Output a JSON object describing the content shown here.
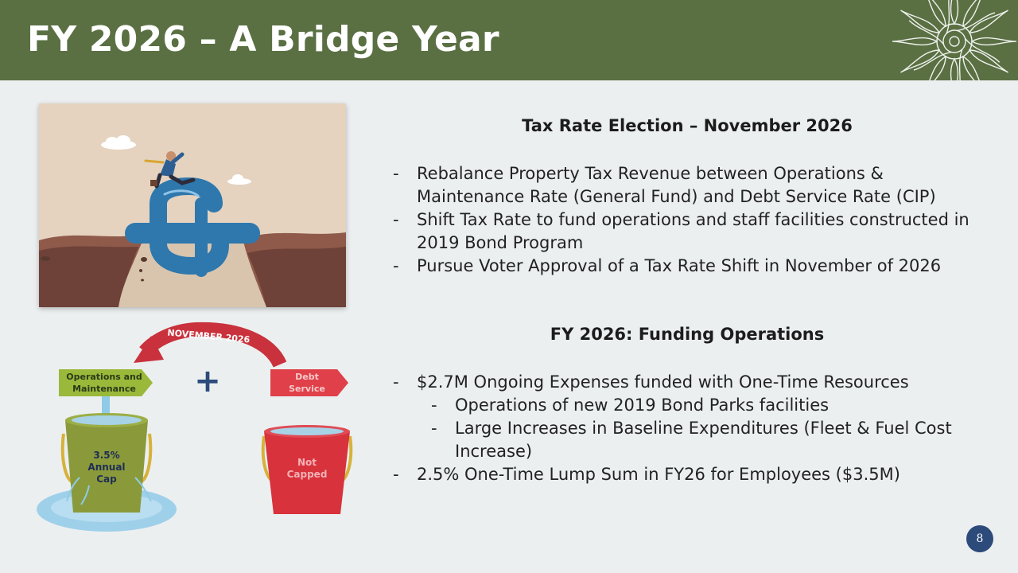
{
  "slide": {
    "title": "FY 2026 – A Bridge Year",
    "page_number": "8"
  },
  "graphic": {
    "arrow_label": "NOVEMBER 2026",
    "om_label_line1": "Operations and",
    "om_label_line2": "Maintenance",
    "debt_label_line1": "Debt",
    "debt_label_line2": "Service",
    "plus_sign": "+",
    "green_bucket_line1": "3.5%",
    "green_bucket_line2": "Annual",
    "green_bucket_line3": "Cap",
    "red_bucket_line1": "Not",
    "red_bucket_line2": "Capped"
  },
  "section1": {
    "heading": "Tax Rate Election – November 2026",
    "bullets": [
      {
        "dash": "-",
        "text": "Rebalance Property Tax Revenue between Operations & Maintenance Rate (General Fund) and Debt Service Rate (CIP)"
      },
      {
        "dash": "-",
        "text": "Shift Tax Rate to fund operations and staff facilities constructed in 2019 Bond Program"
      },
      {
        "dash": "-",
        "text": "Pursue Voter Approval of a Tax Rate Shift in November of 2026"
      }
    ]
  },
  "section2": {
    "heading": "FY 2026: Funding Operations",
    "bullet1": {
      "dash": "-",
      "text": "$2.7M Ongoing Expenses funded with One-Time Resources"
    },
    "sub_bullets": [
      {
        "dash": "-",
        "text": "Operations of new 2019 Bond Parks facilities"
      },
      {
        "dash": "-",
        "text": "Large Increases in Baseline Expenditures (Fleet & Fuel Cost Increase)"
      }
    ],
    "bullet2": {
      "dash": "-",
      "text": "2.5% One-Time Lump Sum in FY26 for Employees ($3.5M)"
    }
  },
  "colors": {
    "header_green": "#5a7043",
    "bucket_green": "#8a9a3a",
    "bucket_red": "#d8323c",
    "label_green": "#9ab83a",
    "label_red": "#e0404a",
    "page_badge": "#2c4b7a"
  }
}
